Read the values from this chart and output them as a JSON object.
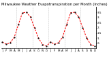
{
  "title": "Milwaukee Weather Evapotranspiration per Month (Inches)",
  "months": [
    "J",
    "F",
    "M",
    "A",
    "M",
    "J",
    "J",
    "A",
    "S",
    "O",
    "N",
    "D",
    "J",
    "F",
    "M",
    "A",
    "M",
    "J",
    "J",
    "A",
    "S",
    "O",
    "N",
    "D"
  ],
  "et_values": [
    0.62,
    0.4,
    0.55,
    1.1,
    2.3,
    3.45,
    3.5,
    3.05,
    2.0,
    1.0,
    0.38,
    0.22,
    0.62,
    0.4,
    0.55,
    1.1,
    2.3,
    3.45,
    3.5,
    3.05,
    2.0,
    1.0,
    0.38,
    0.22
  ],
  "line_color": "#ff0000",
  "marker_color": "#000000",
  "grid_color": "#999999",
  "bg_color": "#ffffff",
  "ylim": [
    0.0,
    4.0
  ],
  "ytick_vals": [
    0.5,
    1.0,
    1.5,
    2.0,
    2.5,
    3.0,
    3.5
  ],
  "ytick_labels": [
    ".5",
    "1.",
    "1.5",
    "2.",
    "2.5",
    "3.",
    "3.5"
  ],
  "grid_x_positions": [
    3.5,
    7.5,
    11.5,
    15.5,
    19.5
  ],
  "title_fontsize": 3.8,
  "tick_fontsize": 3.0,
  "line_width": 0.75,
  "marker_size": 1.2
}
